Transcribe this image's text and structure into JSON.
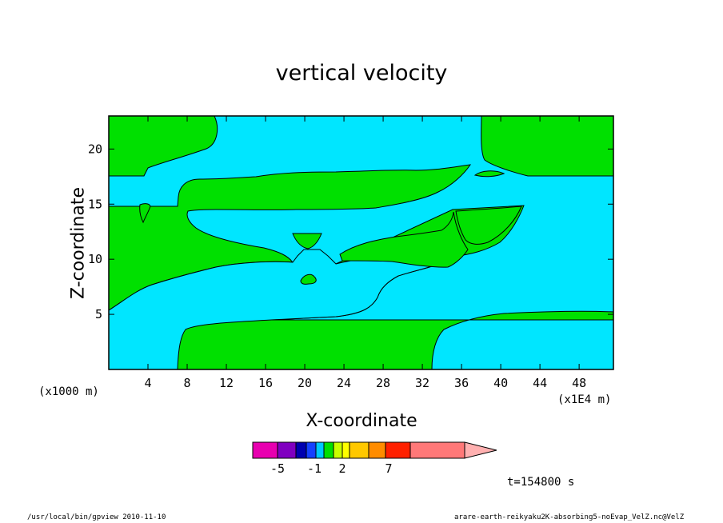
{
  "chart_data": {
    "type": "contour",
    "title": "vertical velocity",
    "xlabel": "X-coordinate",
    "ylabel": "Z-coordinate",
    "x_unit_label": "(x1000 m)",
    "x_scale_label": "(x1E4 m)",
    "xlim": [
      0,
      51.5
    ],
    "ylim": [
      0,
      23
    ],
    "xticks": [
      4,
      8,
      12,
      16,
      20,
      24,
      28,
      32,
      36,
      40,
      44,
      48
    ],
    "yticks": [
      5,
      10,
      15,
      20
    ],
    "colorbar": {
      "colors": [
        "#e800b0",
        "#8000c0",
        "#0000b0",
        "#1540ff",
        "#00c8ff",
        "#00e000",
        "#c8ff00",
        "#ffff00",
        "#ffc800",
        "#ff8c00",
        "#ff2000",
        "#ff7878",
        "#ffb0b0"
      ],
      "tick_labels": [
        "-5",
        "-1",
        "2",
        "7"
      ]
    },
    "time_label": "t=154800 s"
  },
  "colors": {
    "cyan": "#00e6ff",
    "green": "#00e000"
  },
  "footer": {
    "left": "/usr/local/bin/gpview  2010-11-10",
    "right": "arare-earth-reikyaku2K-absorbing5-noEvap_VelZ.nc@VelZ"
  }
}
